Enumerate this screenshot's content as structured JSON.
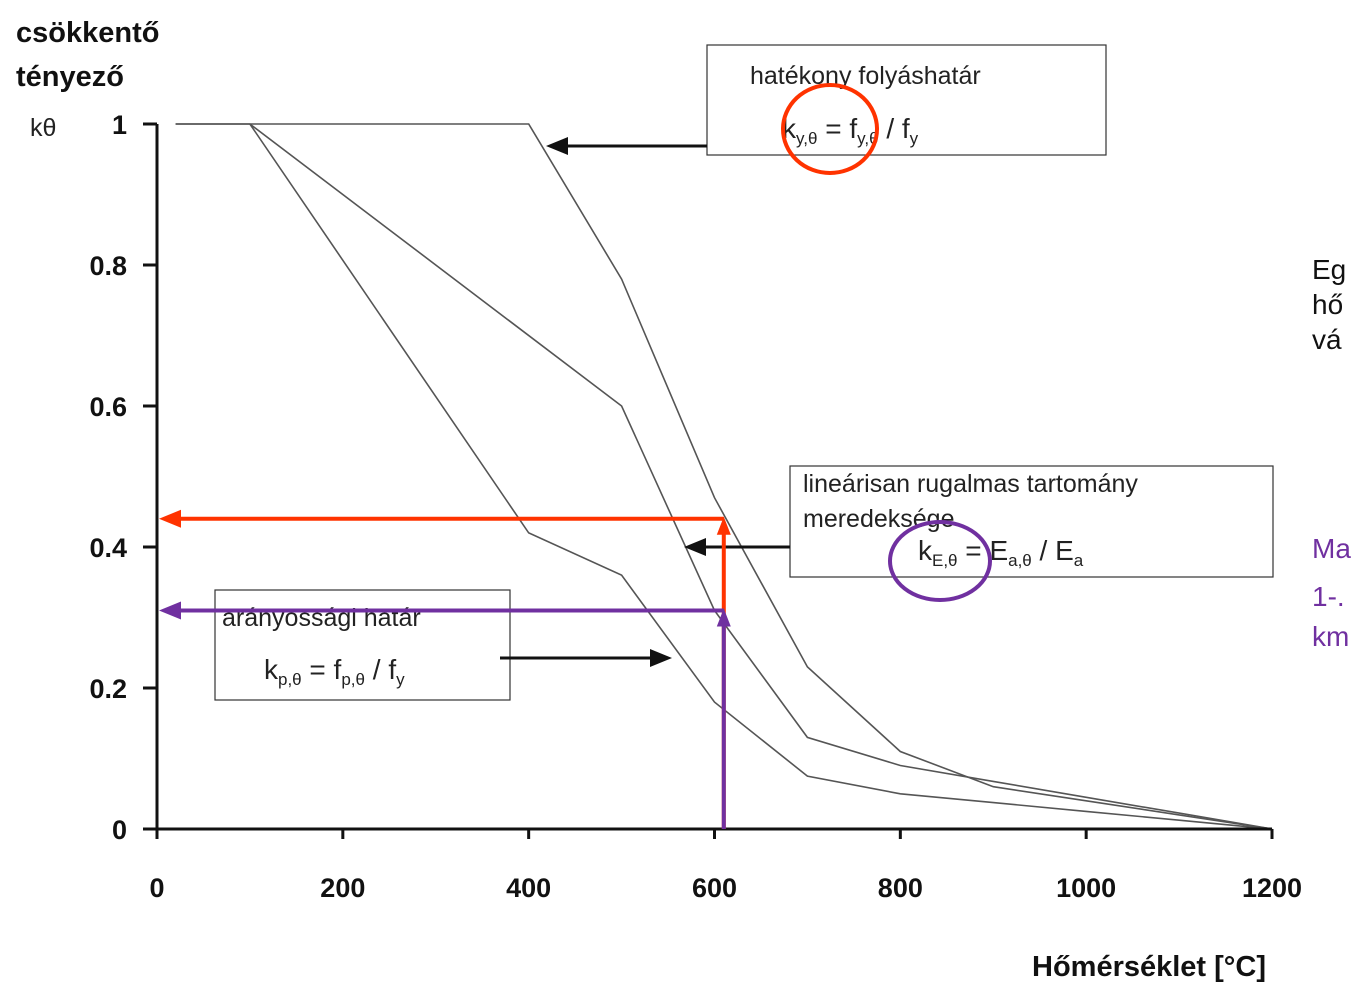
{
  "chart_data": {
    "type": "line",
    "ylabel_line1": "csökkentő",
    "ylabel_line2": "tényező",
    "ysymbol": "kθ",
    "xlabel": "Hőmérséklet [°C]",
    "xlim": [
      0,
      1200
    ],
    "ylim": [
      0,
      1
    ],
    "xticks": [
      "0",
      "200",
      "400",
      "600",
      "800",
      "1000",
      "1200"
    ],
    "yticks": [
      "0",
      "0.2",
      "0.4",
      "0.6",
      "0.8",
      "1"
    ],
    "grid": false,
    "series": [
      {
        "key": "ky",
        "x": [
          20,
          100,
          400,
          500,
          600,
          700,
          800,
          900,
          1000,
          1100,
          1200
        ],
        "y": [
          1,
          1,
          1,
          0.78,
          0.47,
          0.23,
          0.11,
          0.06,
          0.04,
          0.02,
          0
        ]
      },
      {
        "key": "kE",
        "x": [
          20,
          100,
          500,
          600,
          700,
          800,
          900,
          1000,
          1100,
          1200
        ],
        "y": [
          1,
          1,
          0.6,
          0.31,
          0.13,
          0.09,
          0.0675,
          0.045,
          0.0225,
          0
        ]
      },
      {
        "key": "kp",
        "x": [
          100,
          400,
          500,
          600,
          700,
          800,
          900,
          1000,
          1100,
          1200
        ],
        "y": [
          1,
          0.42,
          0.36,
          0.18,
          0.075,
          0.05,
          0.0375,
          0.025,
          0.0125,
          0
        ]
      }
    ],
    "markers": [
      {
        "color": "#ff3300",
        "x": 610,
        "y": 0.44
      },
      {
        "color": "#7030a0",
        "x": 610,
        "y": 0.31
      }
    ]
  },
  "annotations": {
    "yield": {
      "line1": "hatékony folyáshatár",
      "f_k": "k",
      "f_ksub": "y,θ",
      "f_eq": " = f",
      "f_fsub": "y,θ",
      "f_div": " / f",
      "f_dsub": "y"
    },
    "elastic": {
      "line1": "lineárisan rugalmas tartomány",
      "line2": "meredeksége",
      "f_k": "k",
      "f_ksub": "E,θ",
      "f_eq": " = E",
      "f_fsub": "a,θ",
      "f_div": " / E",
      "f_dsub": "a"
    },
    "proportional": {
      "line1": "arányossági határ",
      "f_k": "k",
      "f_ksub": "p,θ",
      "f_eq": " = f",
      "f_fsub": "p,θ",
      "f_div": " / f",
      "f_dsub": "y"
    }
  },
  "side_text": {
    "black_lines": [
      "Eg",
      "hő",
      "vá"
    ],
    "purple_lines": [
      "Ma",
      "1-.",
      "km"
    ]
  },
  "colors": {
    "red": "#ff3300",
    "purple": "#7030a0",
    "curve": "#555555",
    "axis": "#111111"
  }
}
